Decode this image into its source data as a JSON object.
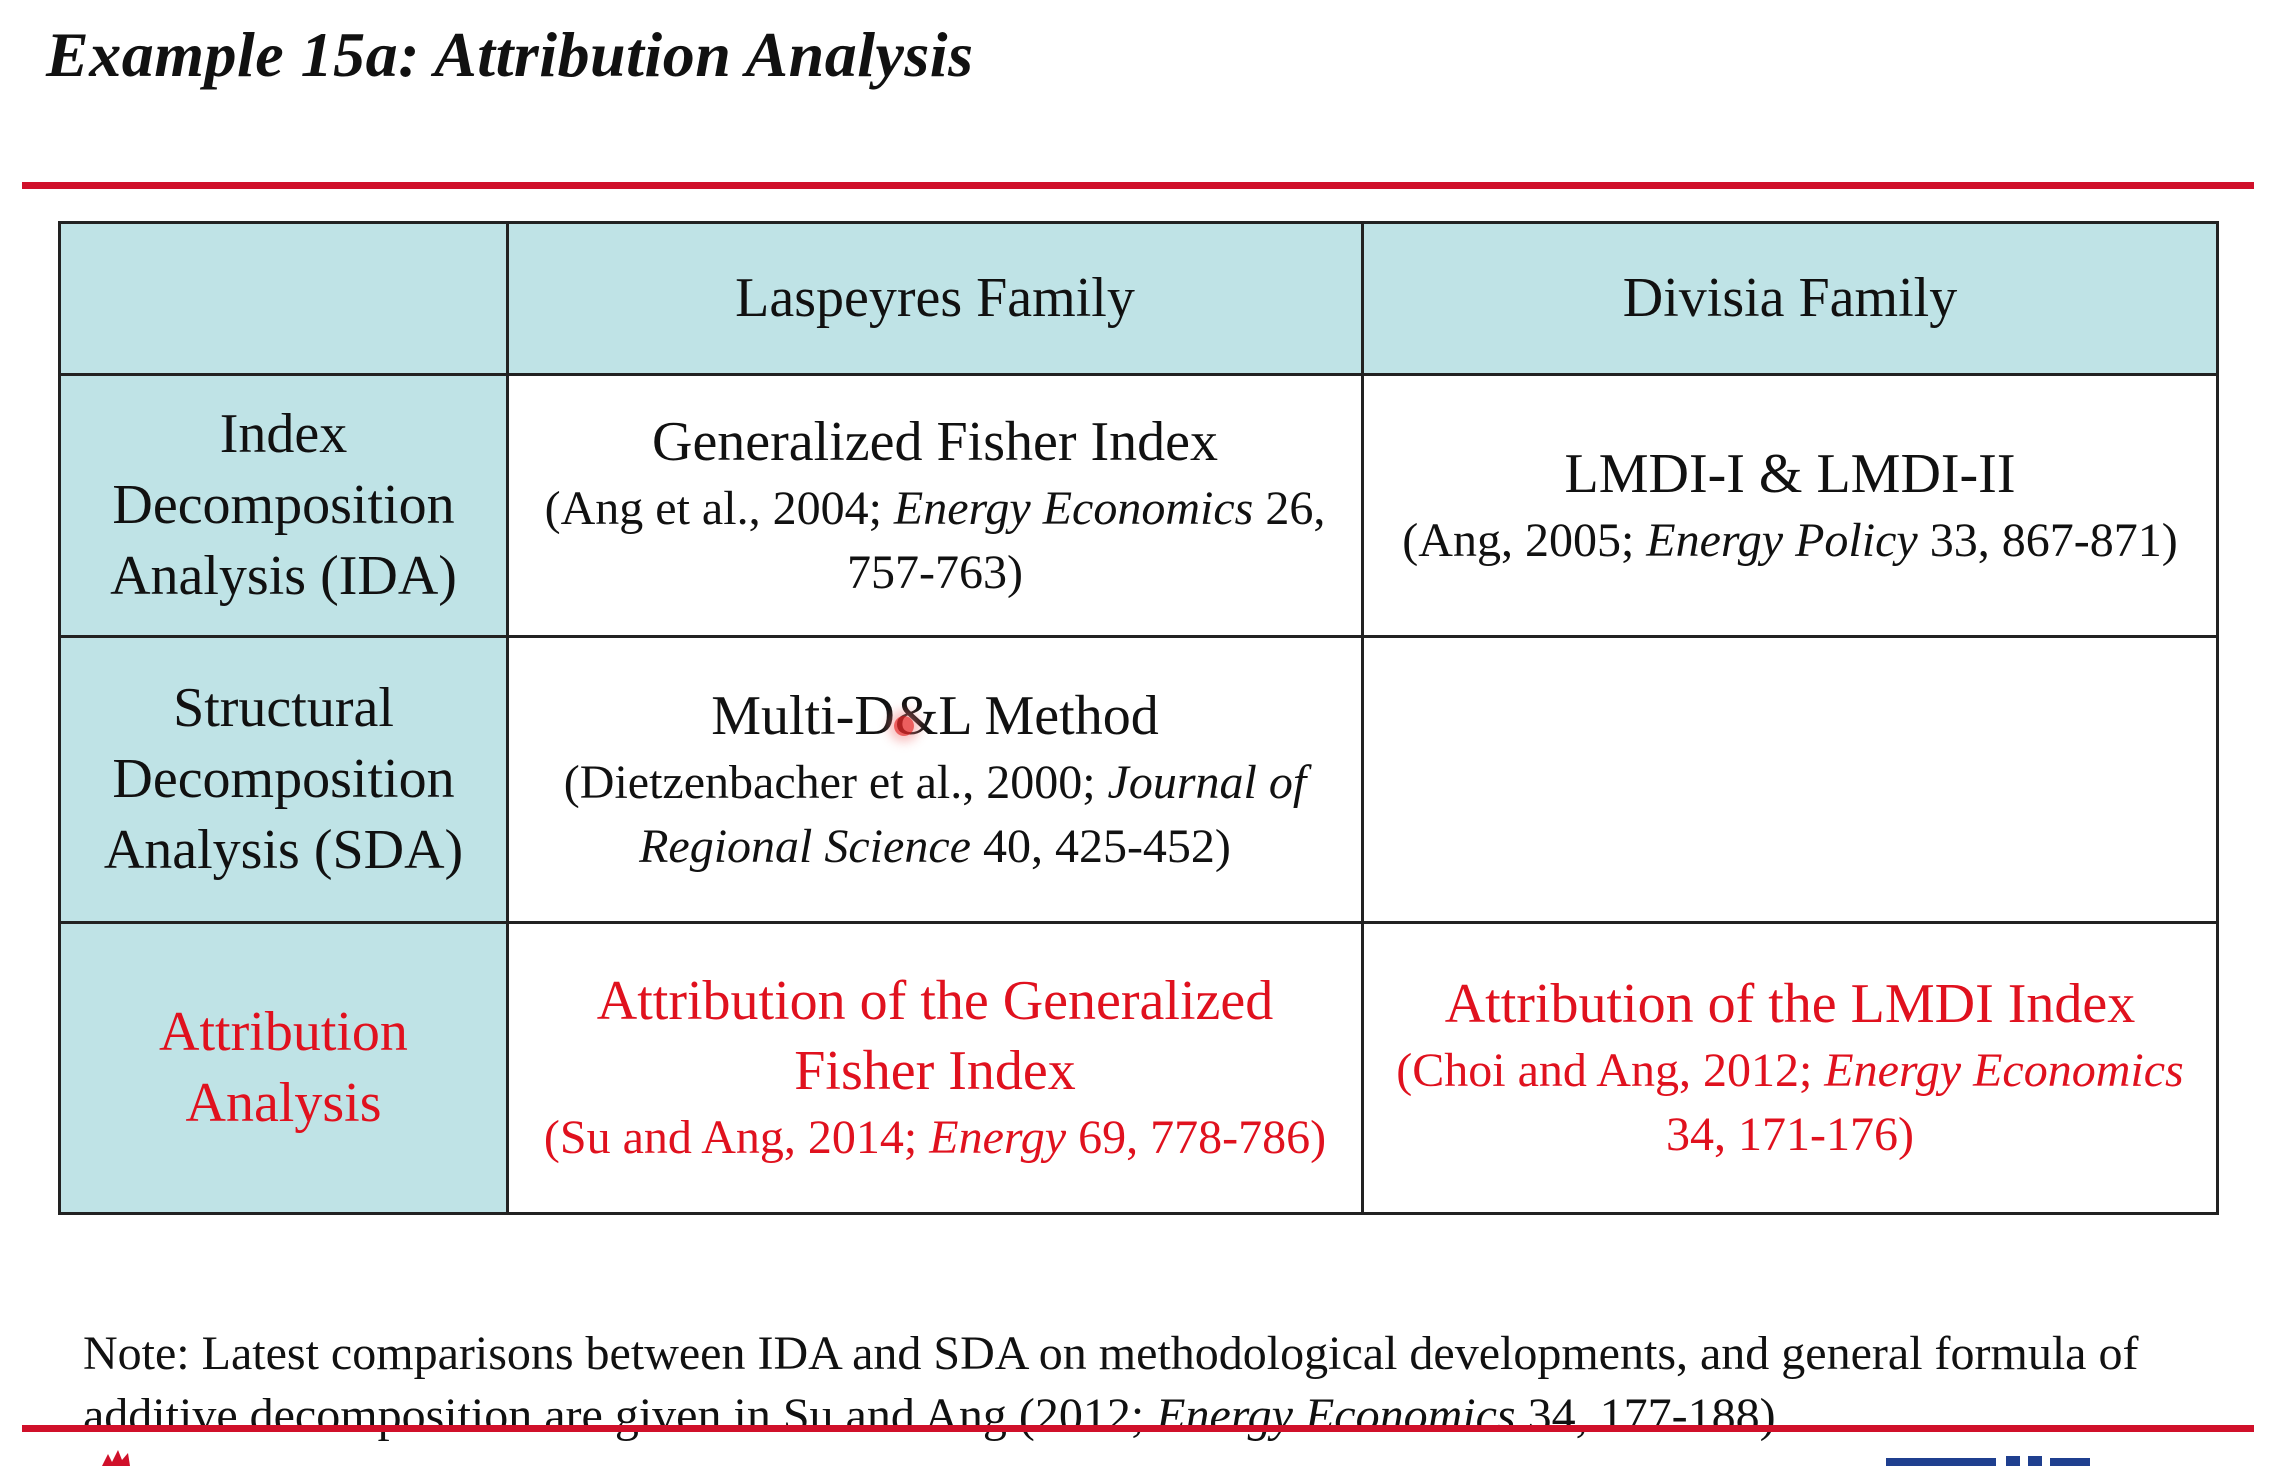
{
  "slide": {
    "title": "Example 15a: Attribution Analysis"
  },
  "colors": {
    "accent_red": "#d0102a",
    "text_red": "#e0111e",
    "header_teal": "#bfe3e6",
    "border": "#222222"
  },
  "table": {
    "columns": [
      "",
      "Laspeyres Family",
      "Divisia Family"
    ],
    "rows": [
      {
        "header": "Index Decomposition Analysis (IDA)",
        "header_lines": [
          "Index",
          "Decomposition",
          "Analysis (IDA)"
        ],
        "laspeyres": {
          "method": "Generalized Fisher Index",
          "citation_lead": "(Ang et al., 2004; ",
          "citation_journal": "Energy Economics",
          "citation_tail": " 26, 757-763)"
        },
        "divisia": {
          "method": "LMDI-I & LMDI-II",
          "citation_lead": "(Ang, 2005; ",
          "citation_journal": "Energy Policy",
          "citation_tail": " 33, 867-871)"
        }
      },
      {
        "header": "Structural Decomposition Analysis (SDA)",
        "header_lines": [
          "Structural",
          "Decomposition",
          "Analysis (SDA)"
        ],
        "laspeyres": {
          "method": "Multi-D&L Method",
          "citation_lead": "(Dietzenbacher et al., 2000; ",
          "citation_journal": "Journal of Regional Science",
          "citation_tail": " 40, 425-452)"
        },
        "divisia": {
          "method": "",
          "citation_lead": "",
          "citation_journal": "",
          "citation_tail": ""
        }
      },
      {
        "header": "Attribution Analysis",
        "header_lines": [
          "Attribution",
          "Analysis"
        ],
        "laspeyres": {
          "method": "Attribution of the Generalized Fisher Index",
          "citation_lead": "(Su and Ang, 2014; ",
          "citation_journal": "Energy",
          "citation_tail": " 69, 778-786)"
        },
        "divisia": {
          "method": "Attribution of the LMDI Index",
          "citation_lead": "(Choi and Ang, 2012; ",
          "citation_journal": "Energy Economics",
          "citation_tail": " 34, 171-176)"
        }
      }
    ]
  },
  "note": {
    "lead": "Note: Latest comparisons between IDA and SDA on methodological developments, and general formula of additive decomposition are given in Su and Ang (2012; ",
    "journal": "Energy Economics",
    "tail": " 34, 177-188)."
  },
  "icons": {
    "pointer": "laser-pointer-dot",
    "left_logo": "red-emblem-icon",
    "right_logo": "institution-logo"
  }
}
